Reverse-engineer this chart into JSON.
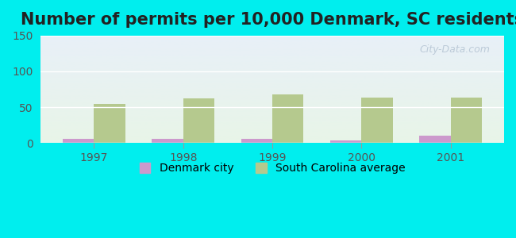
{
  "title": "Number of permits per 10,000 Denmark, SC residents",
  "years": [
    1997,
    1998,
    1999,
    2000,
    2001
  ],
  "denmark_values": [
    6,
    6,
    6,
    3,
    10
  ],
  "sc_avg_values": [
    55,
    62,
    68,
    63,
    63
  ],
  "denmark_color": "#cc99cc",
  "sc_avg_color": "#b5c98e",
  "ylim": [
    0,
    150
  ],
  "yticks": [
    0,
    50,
    100,
    150
  ],
  "bg_color": "#00eeee",
  "plot_bg_top": "#e8f0f8",
  "plot_bg_bottom": "#e8f5e8",
  "bar_width": 0.35,
  "title_fontsize": 15,
  "legend_label_denmark": "Denmark city",
  "legend_label_sc": "South Carolina average",
  "watermark": "City-Data.com"
}
